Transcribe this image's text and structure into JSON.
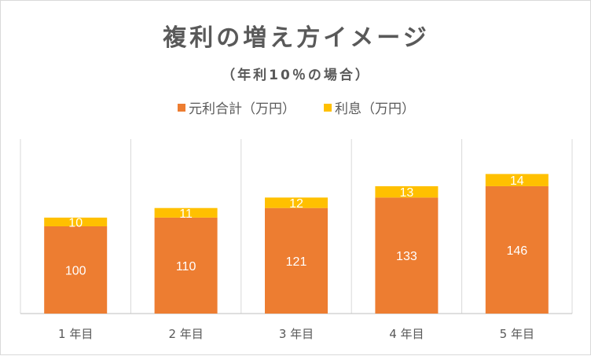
{
  "chart_data": {
    "type": "bar",
    "stacked": true,
    "title": "複利の増え方イメージ",
    "subtitle": "（年利10％の場合）",
    "categories": [
      "1 年目",
      "2 年目",
      "3 年目",
      "4 年目",
      "5 年目"
    ],
    "series": [
      {
        "name": "元利合計（万円）",
        "values": [
          100,
          110,
          121,
          133,
          146
        ],
        "color": "#ED7D31"
      },
      {
        "name": "利息（万円）",
        "values": [
          10,
          11,
          12,
          13,
          14
        ],
        "color": "#FFC000"
      }
    ],
    "ylim": [
      0,
      200
    ],
    "grid": "vertical category separators",
    "legend": "top",
    "data_labels": true
  }
}
